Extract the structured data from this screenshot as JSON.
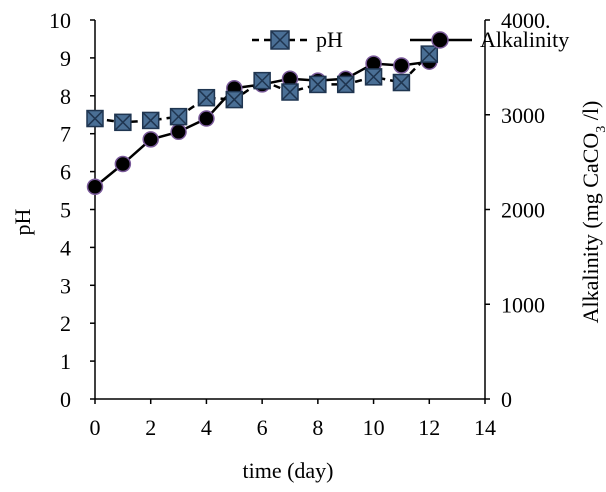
{
  "chart_data": {
    "type": "line",
    "title": "",
    "xlabel": "time (day)",
    "ylabel": "pH",
    "y2label": "Alkalinity (mg CaCO3 /l)",
    "y2label_parts": [
      "Alkalinity (mg CaCO",
      "3",
      " /l)"
    ],
    "xlim": [
      0,
      14
    ],
    "ylim": [
      0,
      10
    ],
    "y2lim": [
      0,
      4000
    ],
    "xticks": [
      "0",
      "2",
      "4",
      "6",
      "8",
      "10",
      "12",
      "14"
    ],
    "yticks": [
      "0",
      "1",
      "2",
      "3",
      "4",
      "5",
      "6",
      "7",
      "8",
      "9",
      "10"
    ],
    "y2ticks": [
      "0",
      "1000",
      "2000",
      "3000",
      "4000."
    ],
    "grid": false,
    "legend_position": "top-right",
    "series": [
      {
        "name": "pH",
        "axis": "left",
        "marker": "x-square",
        "line_style": "dashed",
        "marker_color": "#4a6f95",
        "x": [
          0,
          1,
          2,
          3,
          4,
          5,
          6,
          7,
          8,
          9,
          10,
          11,
          12
        ],
        "values": [
          7.4,
          7.3,
          7.35,
          7.45,
          7.95,
          7.9,
          8.4,
          8.1,
          8.3,
          8.3,
          8.5,
          8.35,
          9.1
        ]
      },
      {
        "name": "Alkalinity",
        "axis": "right",
        "marker": "circle",
        "line_style": "solid",
        "marker_color": "#000000",
        "marker_edge_color": "#7a5a9a",
        "x": [
          0,
          1,
          2,
          3,
          4,
          5,
          6,
          7,
          8,
          9,
          10,
          11,
          12
        ],
        "values": [
          2240,
          2480,
          2740,
          2820,
          2960,
          3280,
          3320,
          3380,
          3360,
          3380,
          3540,
          3520,
          3560
        ]
      }
    ]
  }
}
